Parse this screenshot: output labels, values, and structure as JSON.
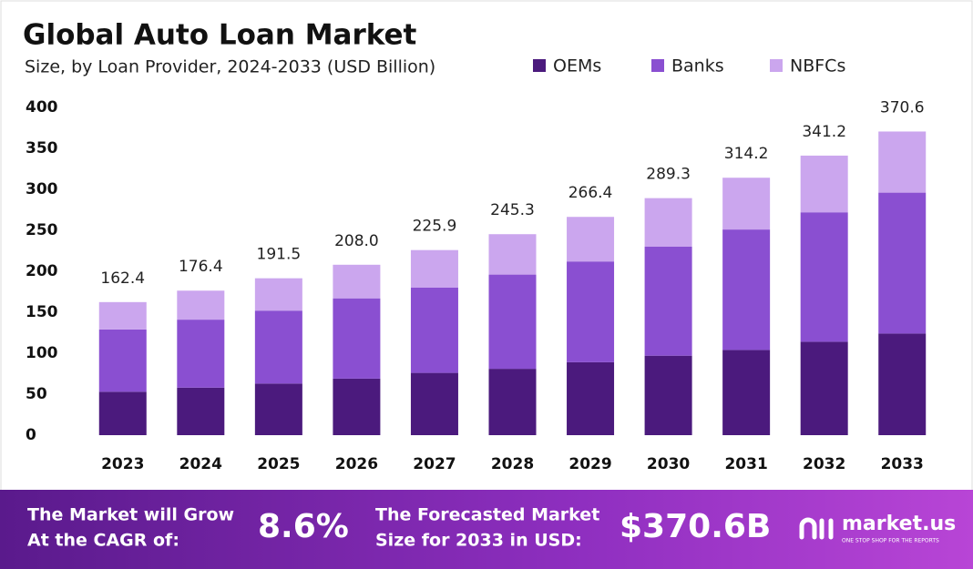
{
  "chart_data": {
    "type": "stacked-bar",
    "title": "Global Auto Loan Market",
    "subtitle": "Size, by Loan Provider, 2024-2033 (USD Billion)",
    "categories": [
      "2023",
      "2024",
      "2025",
      "2026",
      "2027",
      "2028",
      "2029",
      "2030",
      "2031",
      "2032",
      "2033"
    ],
    "series": [
      {
        "name": "OEMs",
        "color": "#4b1a7d",
        "values": [
          53,
          58,
          63,
          69,
          76,
          81,
          89,
          97,
          104,
          114,
          124
        ]
      },
      {
        "name": "Banks",
        "color": "#8a4fd1",
        "values": [
          76,
          83,
          89,
          98,
          104,
          115,
          123,
          133,
          147,
          158,
          172
        ]
      },
      {
        "name": "NBFCs",
        "color": "#cba6ee",
        "values": [
          33.4,
          35.4,
          39.5,
          41,
          45.9,
          49.3,
          54.4,
          59.3,
          63.2,
          69.2,
          74.6
        ]
      }
    ],
    "totals": [
      162.4,
      176.4,
      191.5,
      208,
      225.9,
      245.3,
      266.4,
      289.3,
      314.2,
      341.2,
      370.6
    ],
    "total_labels": [
      "162.4",
      "176.4",
      "191.5",
      "208.0",
      "225.9",
      "245.3",
      "266.4",
      "289.3",
      "314.2",
      "341.2",
      "370.6"
    ],
    "ylim": [
      0,
      400
    ],
    "yticks": [
      0,
      50,
      100,
      150,
      200,
      250,
      300,
      350,
      400
    ],
    "grid": false
  },
  "footer": {
    "cagr_text": [
      "The Market will Grow",
      "At the CAGR of:"
    ],
    "cagr_value": "8.6%",
    "forecast_text": [
      "The Forecasted Market",
      "Size for 2033 in USD:"
    ],
    "forecast_value": "$370.6B",
    "brand": "market.us",
    "tagline": "ONE STOP SHOP FOR THE REPORTS"
  }
}
